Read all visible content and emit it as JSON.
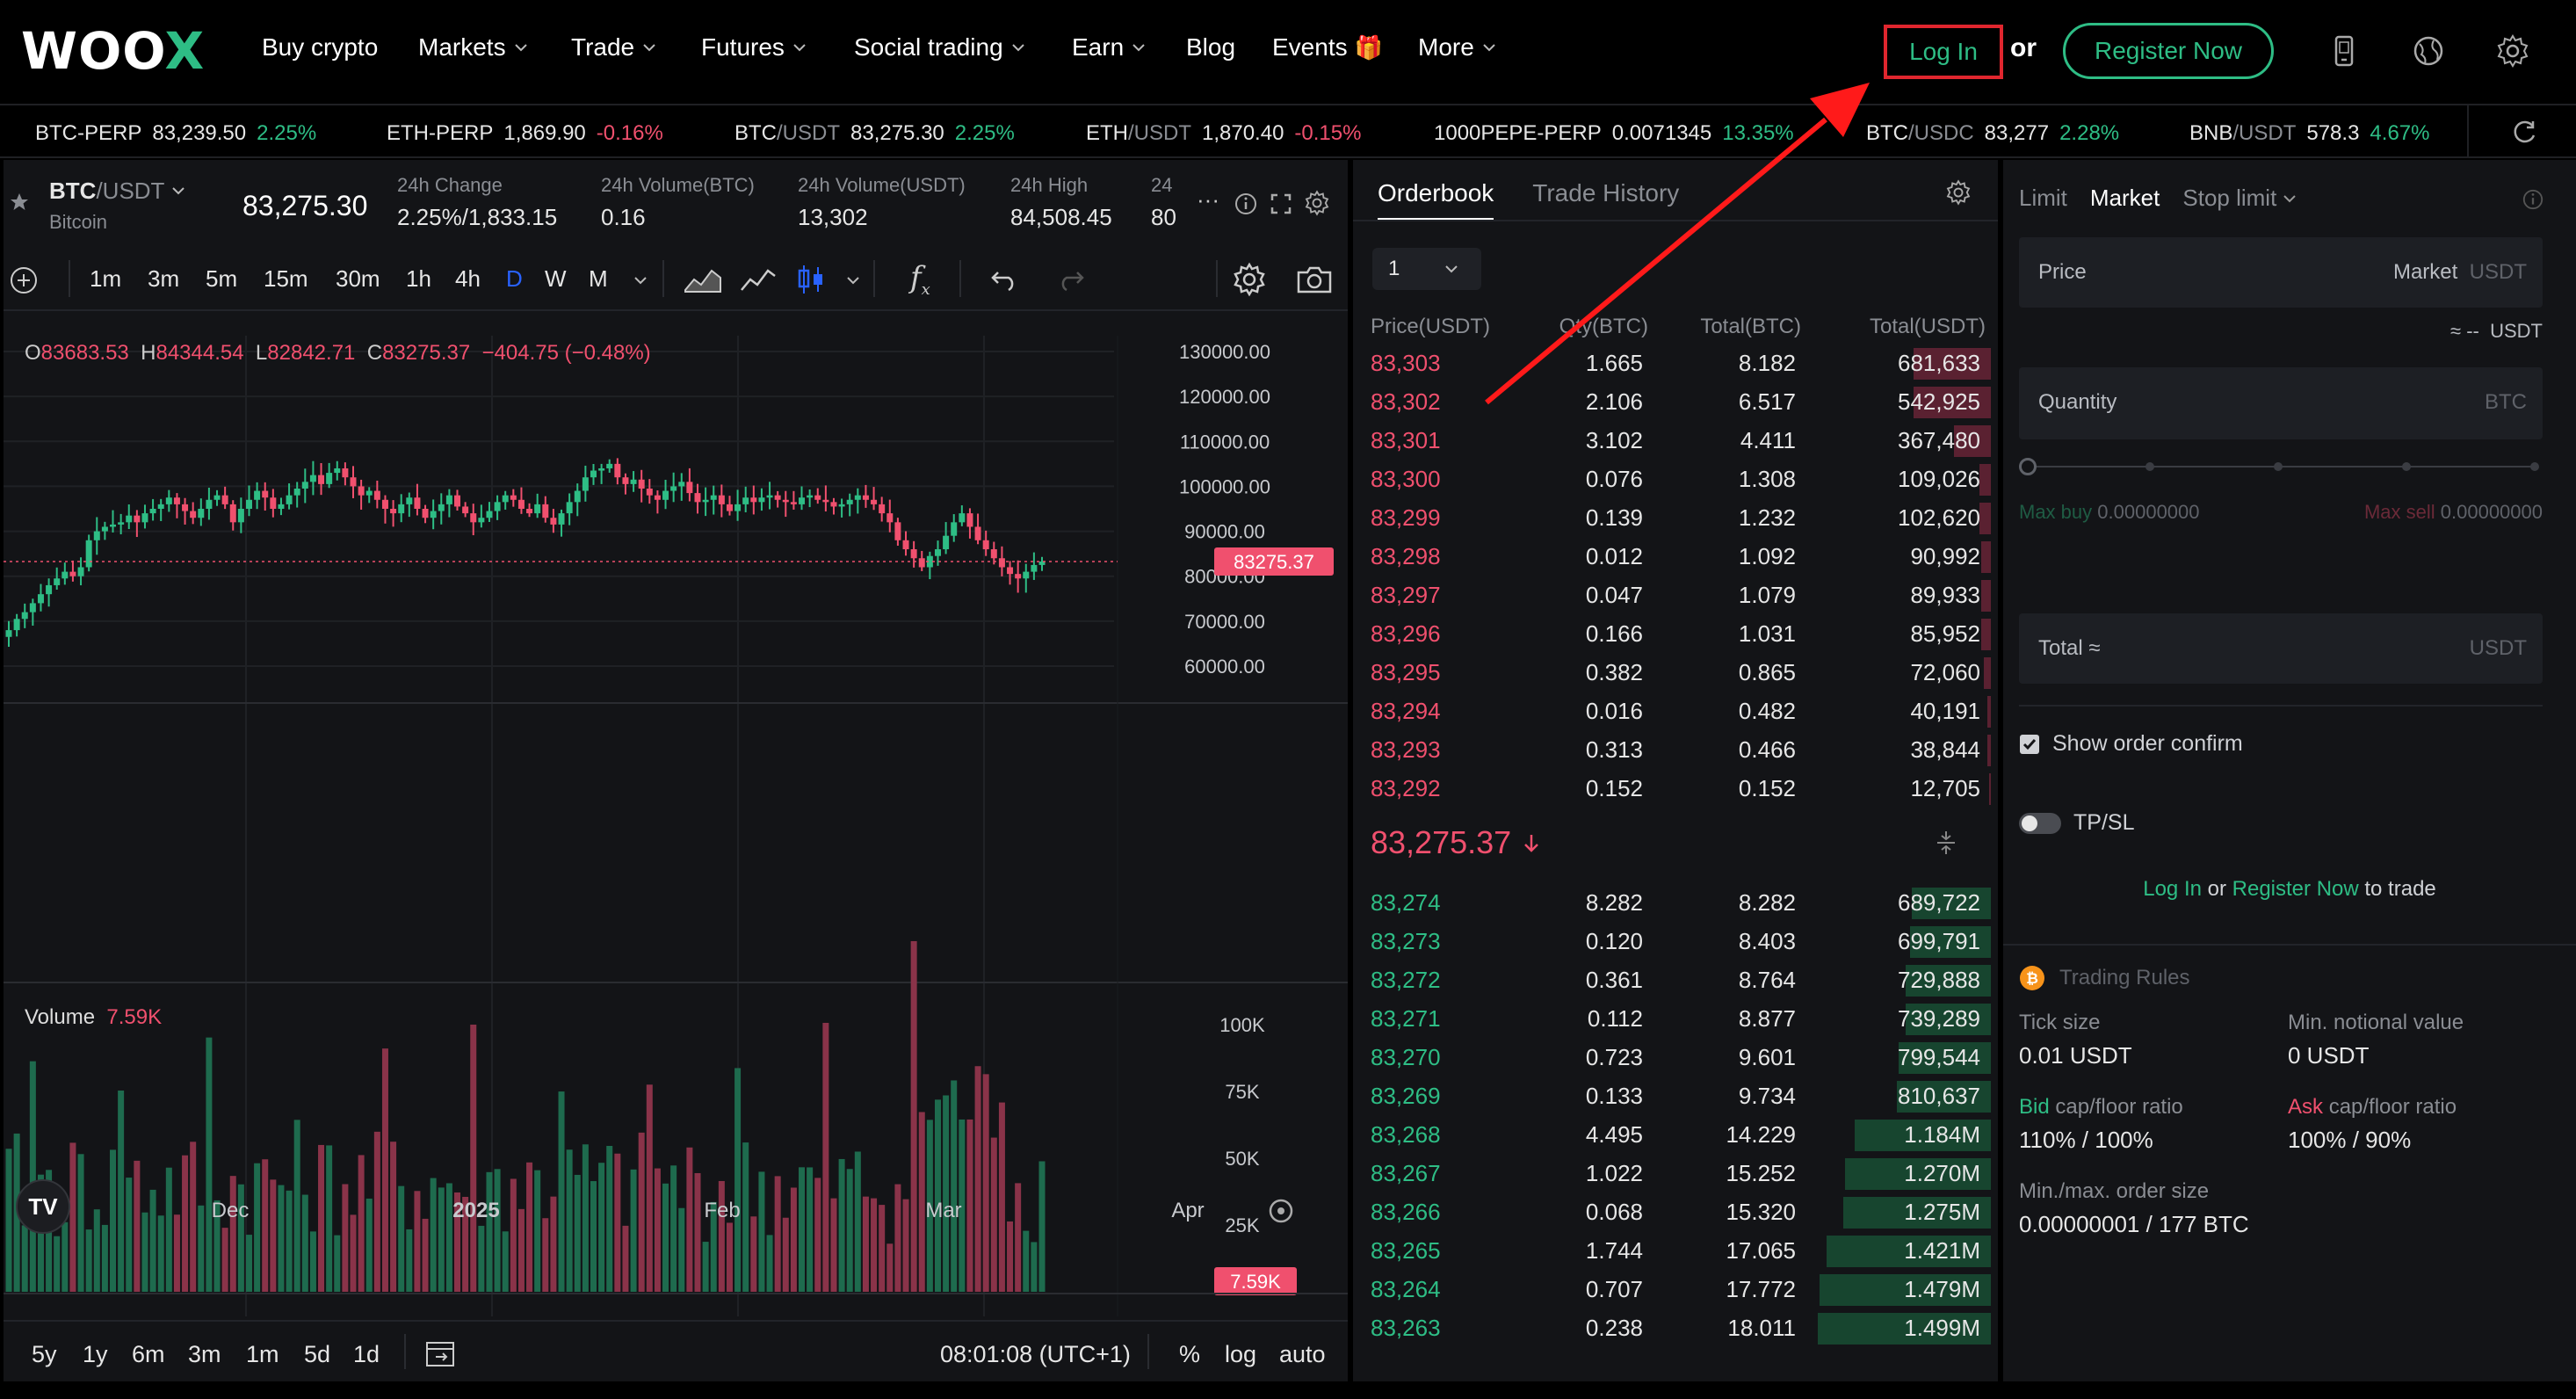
{
  "header": {
    "logo_text": "WOO",
    "logo_x": "X",
    "nav": [
      {
        "label": "Buy crypto",
        "has_chevron": false
      },
      {
        "label": "Markets",
        "has_chevron": true
      },
      {
        "label": "Trade",
        "has_chevron": true
      },
      {
        "label": "Futures",
        "has_chevron": true
      },
      {
        "label": "Social trading",
        "has_chevron": true
      },
      {
        "label": "Earn",
        "has_chevron": true
      },
      {
        "label": "Blog",
        "has_chevron": false
      },
      {
        "label": "Events",
        "has_chevron": false
      },
      {
        "label": "More",
        "has_chevron": true
      }
    ],
    "events_emoji": "🎁",
    "login_label": "Log In",
    "or_label": "or",
    "register_label": "Register Now",
    "icons": [
      "mobile-icon",
      "globe-icon",
      "gear-icon"
    ]
  },
  "ticker": [
    {
      "base": "BTC-PERP",
      "quote": "",
      "price": "83,239.50",
      "change": "2.25%",
      "dir": "up"
    },
    {
      "base": "ETH-PERP",
      "quote": "",
      "price": "1,869.90",
      "change": "-0.16%",
      "dir": "down"
    },
    {
      "base": "BTC",
      "quote": "/USDT",
      "price": "83,275.30",
      "change": "2.25%",
      "dir": "up"
    },
    {
      "base": "ETH",
      "quote": "/USDT",
      "price": "1,870.40",
      "change": "-0.15%",
      "dir": "down"
    },
    {
      "base": "1000PEPE-PERP",
      "quote": "",
      "price": "0.0071345",
      "change": "13.35%",
      "dir": "up"
    },
    {
      "base": "BTC",
      "quote": "/USDC",
      "price": "83,277",
      "change": "2.28%",
      "dir": "up"
    },
    {
      "base": "BNB",
      "quote": "/USDT",
      "price": "578.3",
      "change": "4.67%",
      "dir": "up"
    }
  ],
  "symbol": {
    "base": "BTC",
    "quote": "/USDT",
    "name": "Bitcoin",
    "last_price": "83,275.30",
    "stats": [
      {
        "label": "24h Change",
        "value": "2.25%/1,833.15",
        "color": "#2ebd85"
      },
      {
        "label": "24h Volume(BTC)",
        "value": "0.16",
        "color": "#e6e6e6"
      },
      {
        "label": "24h Volume(USDT)",
        "value": "13,302",
        "color": "#e6e6e6"
      },
      {
        "label": "24h High",
        "value": "84,508.45",
        "color": "#e6e6e6"
      },
      {
        "label": "24",
        "value": "80",
        "color": "#e6e6e6"
      }
    ],
    "more": "···"
  },
  "toolbar": {
    "timeframes": [
      "1m",
      "3m",
      "5m",
      "15m",
      "30m",
      "1h",
      "4h",
      "D",
      "W",
      "M"
    ],
    "active_timeframe": "D",
    "formula_label": "f"
  },
  "chart": {
    "ohlc": {
      "o_label": "O",
      "o": "83683.53",
      "h_label": "H",
      "h": "84344.54",
      "l_label": "L",
      "l": "82842.71",
      "c_label": "C",
      "c": "83275.37",
      "change": "−404.75 (−0.48%)"
    },
    "price_axis": [
      "130000.00",
      "120000.00",
      "110000.00",
      "100000.00",
      "90000.00",
      "80000.00",
      "70000.00",
      "60000.00"
    ],
    "current_price_tag": "83275.37",
    "volume_label": "Volume",
    "volume_value": "7.59K",
    "volume_axis": [
      "100K",
      "75K",
      "50K",
      "25K"
    ],
    "volume_tag": "7.59K",
    "x_axis": [
      "Dec",
      "2025",
      "Feb",
      "Mar",
      "Apr"
    ],
    "logo": "TV"
  },
  "chart_data": {
    "type": "candlestick",
    "ylim": [
      55000,
      135000
    ],
    "current_price": 83275.37,
    "closes": [
      68000,
      70500,
      72000,
      74000,
      76000,
      78000,
      79500,
      81000,
      80000,
      82000,
      88000,
      90000,
      91000,
      91500,
      92000,
      93500,
      92000,
      94000,
      95000,
      96000,
      97500,
      96000,
      94500,
      93000,
      95000,
      97000,
      98000,
      96000,
      92000,
      95000,
      97000,
      99000,
      97500,
      95000,
      96000,
      98000,
      99500,
      101000,
      102500,
      100500,
      103000,
      104000,
      102000,
      100000,
      98000,
      99000,
      97000,
      95000,
      94000,
      96000,
      97500,
      95000,
      93000,
      94500,
      96000,
      98000,
      95500,
      94000,
      92000,
      93000,
      94500,
      96500,
      98000,
      97000,
      95000,
      94000,
      96000,
      93000,
      91500,
      94000,
      96500,
      99000,
      102000,
      103500,
      104000,
      105000,
      102000,
      100500,
      101500,
      99500,
      98000,
      97000,
      99000,
      100000,
      101000,
      98500,
      96500,
      97000,
      98000,
      96000,
      94500,
      96000,
      97500,
      96500,
      97500,
      98000,
      97000,
      96500,
      96000,
      97500,
      98000,
      97000,
      96500,
      95500,
      96000,
      97000,
      98000,
      97000,
      96000,
      94000,
      92000,
      88000,
      86000,
      84000,
      82000,
      84500,
      86000,
      89000,
      92000,
      94000,
      91000,
      88000,
      86000,
      84000,
      82000,
      80500,
      79500,
      81000,
      82500,
      83275
    ]
  },
  "timerange": {
    "ranges": [
      "5y",
      "1y",
      "6m",
      "3m",
      "1m",
      "5d",
      "1d"
    ],
    "clock": "08:01:08 (UTC+1)",
    "percent": "%",
    "log": "log",
    "auto": "auto"
  },
  "orderbook": {
    "tab_active": "Orderbook",
    "tab_inactive": "Trade History",
    "precision": "1",
    "headers": [
      "Price(USDT)",
      "Qty(BTC)",
      "Total(BTC)",
      "Total(USDT)"
    ],
    "asks": [
      {
        "price": "83,303",
        "qty": "1.665",
        "total_btc": "8.182",
        "total_usdt": "681,633",
        "depth": 0.42
      },
      {
        "price": "83,302",
        "qty": "2.106",
        "total_btc": "6.517",
        "total_usdt": "542,925",
        "depth": 0.42
      },
      {
        "price": "83,301",
        "qty": "3.102",
        "total_btc": "4.411",
        "total_usdt": "367,480",
        "depth": 0.2
      },
      {
        "price": "83,300",
        "qty": "0.076",
        "total_btc": "1.308",
        "total_usdt": "109,026",
        "depth": 0.06
      },
      {
        "price": "83,299",
        "qty": "0.139",
        "total_btc": "1.232",
        "total_usdt": "102,620",
        "depth": 0.06
      },
      {
        "price": "83,298",
        "qty": "0.012",
        "total_btc": "1.092",
        "total_usdt": "90,992",
        "depth": 0.05
      },
      {
        "price": "83,297",
        "qty": "0.047",
        "total_btc": "1.079",
        "total_usdt": "89,933",
        "depth": 0.05
      },
      {
        "price": "83,296",
        "qty": "0.166",
        "total_btc": "1.031",
        "total_usdt": "85,952",
        "depth": 0.05
      },
      {
        "price": "83,295",
        "qty": "0.382",
        "total_btc": "0.865",
        "total_usdt": "72,060",
        "depth": 0.04
      },
      {
        "price": "83,294",
        "qty": "0.016",
        "total_btc": "0.482",
        "total_usdt": "40,191",
        "depth": 0.02
      },
      {
        "price": "83,293",
        "qty": "0.313",
        "total_btc": "0.466",
        "total_usdt": "38,844",
        "depth": 0.02
      },
      {
        "price": "83,292",
        "qty": "0.152",
        "total_btc": "0.152",
        "total_usdt": "12,705",
        "depth": 0.01
      }
    ],
    "mid_price": "83,275.37",
    "bids": [
      {
        "price": "83,274",
        "qty": "8.282",
        "total_btc": "8.282",
        "total_usdt": "689,722",
        "depth": 0.43
      },
      {
        "price": "83,273",
        "qty": "0.120",
        "total_btc": "8.403",
        "total_usdt": "699,791",
        "depth": 0.44
      },
      {
        "price": "83,272",
        "qty": "0.361",
        "total_btc": "8.764",
        "total_usdt": "729,888",
        "depth": 0.46
      },
      {
        "price": "83,271",
        "qty": "0.112",
        "total_btc": "8.877",
        "total_usdt": "739,289",
        "depth": 0.46
      },
      {
        "price": "83,270",
        "qty": "0.723",
        "total_btc": "9.601",
        "total_usdt": "799,544",
        "depth": 0.5
      },
      {
        "price": "83,269",
        "qty": "0.133",
        "total_btc": "9.734",
        "total_usdt": "810,637",
        "depth": 0.51
      },
      {
        "price": "83,268",
        "qty": "4.495",
        "total_btc": "14.229",
        "total_usdt": "1.184M",
        "depth": 0.74
      },
      {
        "price": "83,267",
        "qty": "1.022",
        "total_btc": "15.252",
        "total_usdt": "1.270M",
        "depth": 0.79
      },
      {
        "price": "83,266",
        "qty": "0.068",
        "total_btc": "15.320",
        "total_usdt": "1.275M",
        "depth": 0.8
      },
      {
        "price": "83,265",
        "qty": "1.744",
        "total_btc": "17.065",
        "total_usdt": "1.421M",
        "depth": 0.89
      },
      {
        "price": "83,264",
        "qty": "0.707",
        "total_btc": "17.772",
        "total_usdt": "1.479M",
        "depth": 0.93
      },
      {
        "price": "83,263",
        "qty": "0.238",
        "total_btc": "18.011",
        "total_usdt": "1.499M",
        "depth": 0.94
      }
    ]
  },
  "orderform": {
    "tabs": [
      "Limit",
      "Market",
      "Stop limit"
    ],
    "active_tab": "Market",
    "price_label": "Price",
    "price_value": "Market",
    "price_unit": "USDT",
    "approx": "≈ --",
    "approx_unit": "USDT",
    "qty_label": "Quantity",
    "qty_unit": "BTC",
    "max_buy_label": "Max buy",
    "max_buy_value": "0.00000000",
    "max_sell_label": "Max sell",
    "max_sell_value": "0.00000000",
    "total_label": "Total ≈",
    "total_unit": "USDT",
    "show_confirm": "Show order confirm",
    "tpsl": "TP/SL",
    "login": "Log In",
    "or": "or",
    "register": "Register Now",
    "to_trade": "to trade"
  },
  "rules": {
    "title": "Trading Rules",
    "tick_size_label": "Tick size",
    "tick_size": "0.01 USDT",
    "min_notional_label": "Min. notional value",
    "min_notional": "0 USDT",
    "bid_label_word": "Bid",
    "bid_label_rest": "cap/floor ratio",
    "bid_value": "110% / 100%",
    "ask_label_word": "Ask",
    "ask_label_rest": "cap/floor ratio",
    "ask_value": "100% / 90%",
    "order_size_label": "Min./max. order size",
    "order_size": "0.00000001 / 177 BTC"
  },
  "colors": {
    "up": "#2ebd85",
    "down": "#f0506e",
    "annotation": "#ff1a1a"
  }
}
